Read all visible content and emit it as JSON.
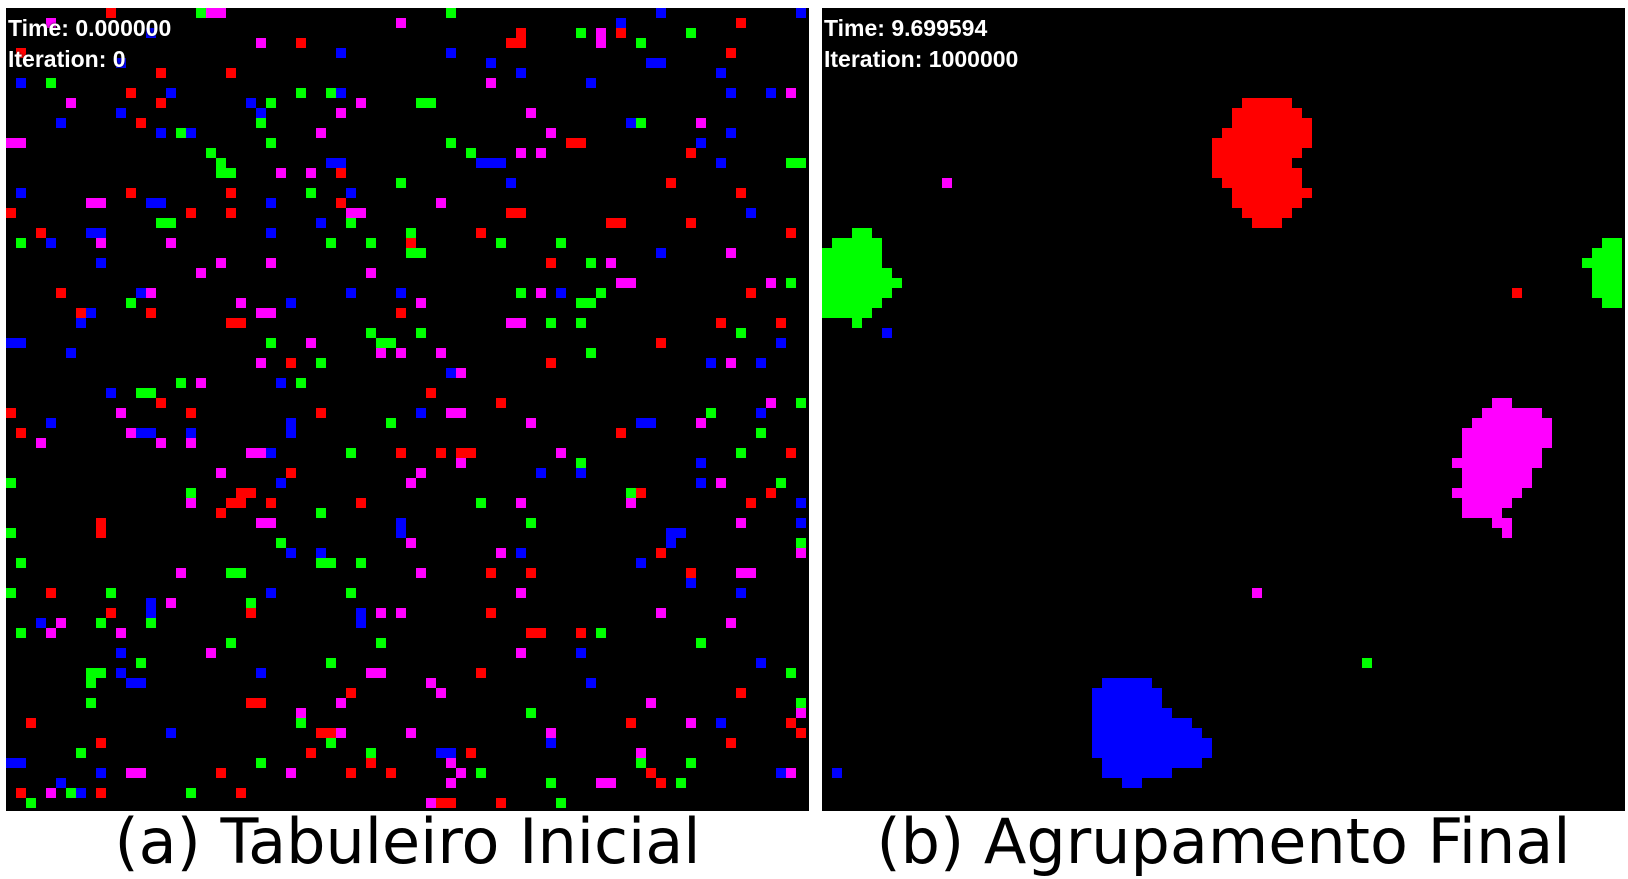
{
  "colors": {
    "red": "#ff0000",
    "green": "#00ff00",
    "blue": "#0000ff",
    "magenta": "#ff00ff",
    "background": "#000000"
  },
  "panels": [
    {
      "id": "initial",
      "time_label": "Time: 0.000000",
      "iteration_label": "Iteration: 0",
      "caption": "(a) Tabuleiro Inicial",
      "state": "scattered"
    },
    {
      "id": "final",
      "time_label": "Time: 9.699594",
      "iteration_label": "Iteration: 1000000",
      "caption": "(b) Agrupamento Final",
      "state": "clustered"
    }
  ]
}
